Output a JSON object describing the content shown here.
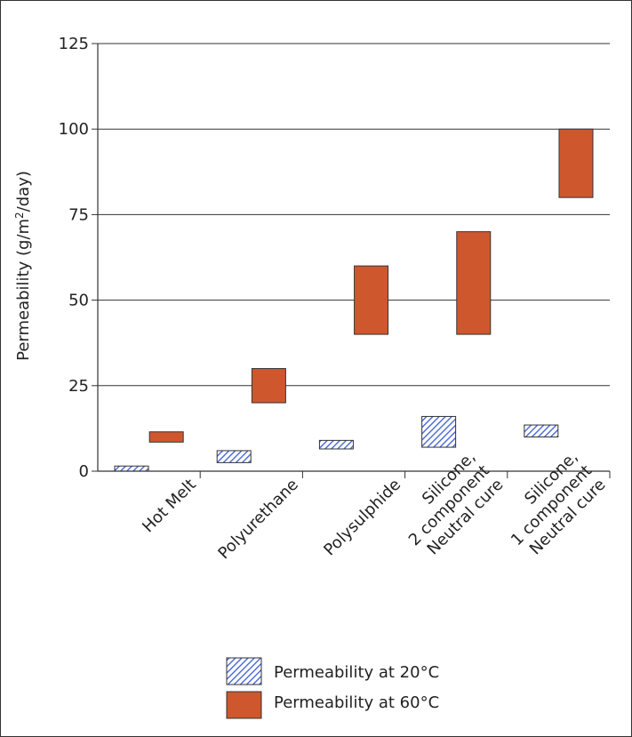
{
  "chart_data": {
    "type": "bar",
    "subtype": "floating-range",
    "title": "",
    "xlabel": "",
    "ylabel": "Permeability (g/m²/day)",
    "ylabel_parts": {
      "main": "Permeability (g/m",
      "sup": "2",
      "tail": "/day)"
    },
    "ylim": [
      0,
      125
    ],
    "yticks": [
      "0",
      "25",
      "50",
      "75",
      "100",
      "125"
    ],
    "ytick_values": [
      0,
      25,
      50,
      75,
      100,
      125
    ],
    "grid": "horizontal",
    "legend_position": "bottom",
    "categories": [
      [
        "Hot Melt"
      ],
      [
        "Polyurethane"
      ],
      [
        "Polysulphide"
      ],
      [
        "Silicone,",
        "2 component",
        "Neutral cure"
      ],
      [
        "Silicone,",
        "1 component",
        "Neutral cure"
      ]
    ],
    "series": [
      {
        "name": "Permeability at 20°C",
        "style": "hatched",
        "color": "#3b5bd6",
        "ranges": [
          [
            0,
            1.5
          ],
          [
            2.5,
            6
          ],
          [
            6.5,
            9
          ],
          [
            7,
            16
          ],
          [
            10,
            13.5
          ]
        ]
      },
      {
        "name": "Permeability at 60°C",
        "style": "solid",
        "color": "#cf572e",
        "ranges": [
          [
            8.5,
            11.5
          ],
          [
            20,
            30
          ],
          [
            40,
            60
          ],
          [
            40,
            70
          ],
          [
            80,
            100
          ]
        ]
      }
    ]
  }
}
